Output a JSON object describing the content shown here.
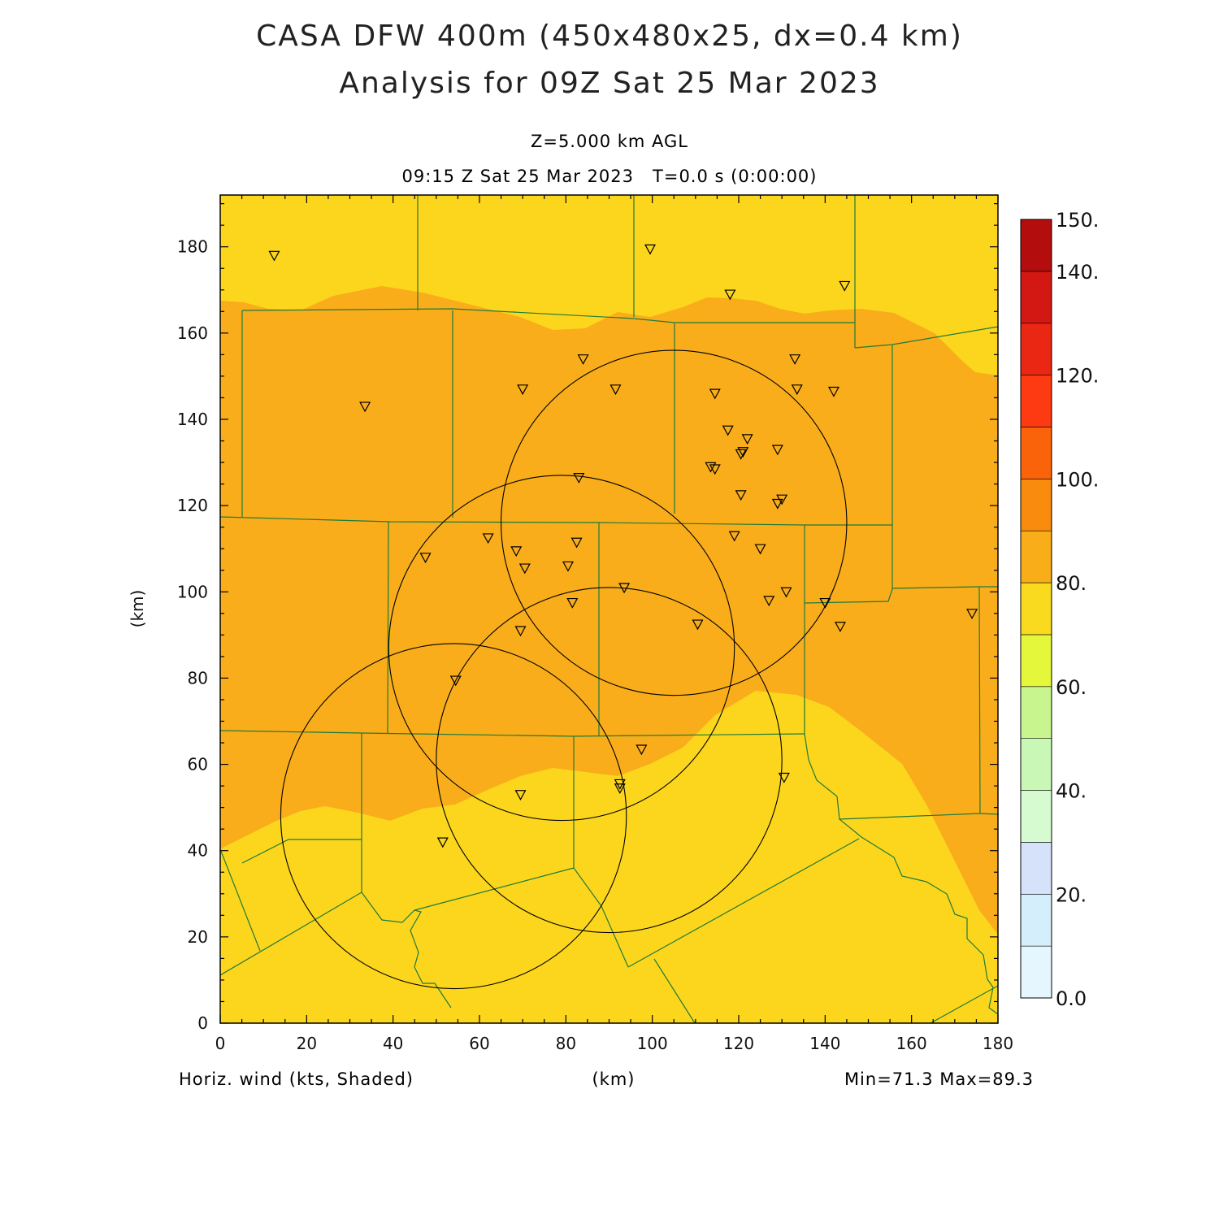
{
  "header": {
    "title_line1": "CASA DFW 400m (450x480x25, dx=0.4 km)",
    "title_line2": "Analysis for 09Z Sat 25 Mar 2023",
    "subtitle_level": "Z=5.000 km AGL",
    "subtitle_time": "09:15 Z Sat 25 Mar 2023   T=0.0 s (0:00:00)"
  },
  "footer": {
    "field_label": "Horiz. wind (kts, Shaded)",
    "x_axis_label": "(km)",
    "min_max": "Min=71.3 Max=89.3"
  },
  "chart_data": {
    "type": "heatmap",
    "field": "Horizontal wind speed",
    "units": "kts",
    "xlabel": "(km)",
    "ylabel": "(km)",
    "xlim": [
      0,
      180
    ],
    "ylim": [
      0,
      192
    ],
    "x_ticks": [
      0,
      20,
      40,
      60,
      80,
      100,
      120,
      140,
      160,
      180
    ],
    "y_ticks": [
      0,
      20,
      40,
      60,
      80,
      100,
      120,
      140,
      160,
      180
    ],
    "min": 71.3,
    "max": 89.3,
    "colorbar": {
      "range": [
        0,
        150
      ],
      "step": 10,
      "labels": [
        "0.0",
        "20.",
        "40.",
        "60.",
        "80.",
        "100.",
        "120.",
        "140.",
        "150."
      ],
      "colors": [
        "#e6f6ff",
        "#d5eefb",
        "#d6e2fa",
        "#d6fbd0",
        "#c9f7b6",
        "#c9f58e",
        "#e4f73a",
        "#f9da1f",
        "#f8ad19",
        "#f98b0e",
        "#fb630a",
        "#fd3a12",
        "#e92712",
        "#d31813",
        "#b40d0d"
      ]
    },
    "zones": [
      {
        "label": "71-80",
        "color": "#fcd61d"
      },
      {
        "label": "80-90",
        "color": "#f9ad1a"
      }
    ],
    "radar_range_rings": [
      {
        "center": [
          105,
          116
        ],
        "radius": 40
      },
      {
        "center": [
          79,
          87
        ],
        "radius": 40
      },
      {
        "center": [
          90,
          61
        ],
        "radius": 40
      },
      {
        "center": [
          54,
          48
        ],
        "radius": 40
      }
    ],
    "stations": [
      [
        12.5,
        178
      ],
      [
        99.5,
        179.5
      ],
      [
        118,
        169
      ],
      [
        144.5,
        171
      ],
      [
        33.5,
        143
      ],
      [
        84,
        154
      ],
      [
        70,
        147
      ],
      [
        91.5,
        147
      ],
      [
        114.5,
        146
      ],
      [
        133,
        154
      ],
      [
        133.5,
        147
      ],
      [
        142,
        146.5
      ],
      [
        117.5,
        137.5
      ],
      [
        122,
        135.5
      ],
      [
        121,
        132.5
      ],
      [
        120.5,
        132
      ],
      [
        129,
        133
      ],
      [
        113.5,
        129
      ],
      [
        114.5,
        128.5
      ],
      [
        83,
        126.5
      ],
      [
        120.5,
        122.5
      ],
      [
        130,
        121.5
      ],
      [
        129,
        120.5
      ],
      [
        62,
        112.5
      ],
      [
        82.5,
        111.5
      ],
      [
        119,
        113
      ],
      [
        125,
        110
      ],
      [
        47.5,
        108
      ],
      [
        68.5,
        109.5
      ],
      [
        70.5,
        105.5
      ],
      [
        80.5,
        106
      ],
      [
        93.5,
        101
      ],
      [
        81.5,
        97.5
      ],
      [
        127,
        98
      ],
      [
        131,
        100
      ],
      [
        140,
        97.5
      ],
      [
        69.5,
        91
      ],
      [
        110.5,
        92.5
      ],
      [
        143.5,
        92
      ],
      [
        174,
        95
      ],
      [
        54.5,
        79.5
      ],
      [
        97.5,
        63.5
      ],
      [
        92.5,
        55.5
      ],
      [
        92.5,
        54.5
      ],
      [
        69.5,
        53
      ],
      [
        130.5,
        57
      ],
      [
        51.5,
        42
      ]
    ]
  }
}
